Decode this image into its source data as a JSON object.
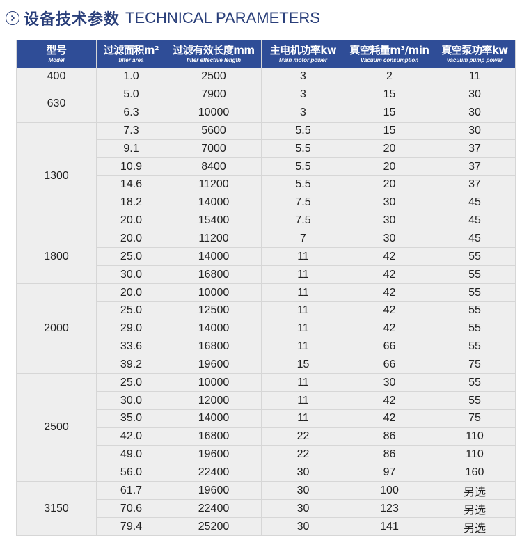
{
  "header": {
    "title_cn": "设备技术参数",
    "title_en": "TECHNICAL PARAMETERS"
  },
  "table": {
    "columns": [
      {
        "cn": "型号",
        "en": "Model"
      },
      {
        "cn": "过滤面积m²",
        "en": "filter area"
      },
      {
        "cn": "过滤有效长度mm",
        "en": "filter effective length"
      },
      {
        "cn": "主电机功率kw",
        "en": "Main motor power"
      },
      {
        "cn": "真空耗量m³/min",
        "en": "Vacuum consumption"
      },
      {
        "cn": "真空泵功率kw",
        "en": "vacuum pump power"
      }
    ],
    "groups": [
      {
        "model": "400",
        "rows": [
          [
            "1.0",
            "2500",
            "3",
            "2",
            "11"
          ]
        ]
      },
      {
        "model": "630",
        "rows": [
          [
            "5.0",
            "7900",
            "3",
            "15",
            "30"
          ],
          [
            "6.3",
            "10000",
            "3",
            "15",
            "30"
          ]
        ]
      },
      {
        "model": "1300",
        "rows": [
          [
            "7.3",
            "5600",
            "5.5",
            "15",
            "30"
          ],
          [
            "9.1",
            "7000",
            "5.5",
            "20",
            "37"
          ],
          [
            "10.9",
            "8400",
            "5.5",
            "20",
            "37"
          ],
          [
            "14.6",
            "11200",
            "5.5",
            "20",
            "37"
          ],
          [
            "18.2",
            "14000",
            "7.5",
            "30",
            "45"
          ],
          [
            "20.0",
            "15400",
            "7.5",
            "30",
            "45"
          ]
        ]
      },
      {
        "model": "1800",
        "rows": [
          [
            "20.0",
            "11200",
            "7",
            "30",
            "45"
          ],
          [
            "25.0",
            "14000",
            "11",
            "42",
            "55"
          ],
          [
            "30.0",
            "16800",
            "11",
            "42",
            "55"
          ]
        ]
      },
      {
        "model": "2000",
        "rows": [
          [
            "20.0",
            "10000",
            "11",
            "42",
            "55"
          ],
          [
            "25.0",
            "12500",
            "11",
            "42",
            "55"
          ],
          [
            "29.0",
            "14000",
            "11",
            "42",
            "55"
          ],
          [
            "33.6",
            "16800",
            "11",
            "66",
            "55"
          ],
          [
            "39.2",
            "19600",
            "15",
            "66",
            "75"
          ]
        ]
      },
      {
        "model": "2500",
        "rows": [
          [
            "25.0",
            "10000",
            "11",
            "30",
            "55"
          ],
          [
            "30.0",
            "12000",
            "11",
            "42",
            "55"
          ],
          [
            "35.0",
            "14000",
            "11",
            "42",
            "75"
          ],
          [
            "42.0",
            "16800",
            "22",
            "86",
            "110"
          ],
          [
            "49.0",
            "19600",
            "22",
            "86",
            "110"
          ],
          [
            "56.0",
            "22400",
            "30",
            "97",
            "160"
          ]
        ]
      },
      {
        "model": "3150",
        "rows": [
          [
            "61.7",
            "19600",
            "30",
            "100",
            "另选"
          ],
          [
            "70.6",
            "22400",
            "30",
            "123",
            "另选"
          ],
          [
            "79.4",
            "25200",
            "30",
            "141",
            "另选"
          ]
        ]
      }
    ]
  }
}
